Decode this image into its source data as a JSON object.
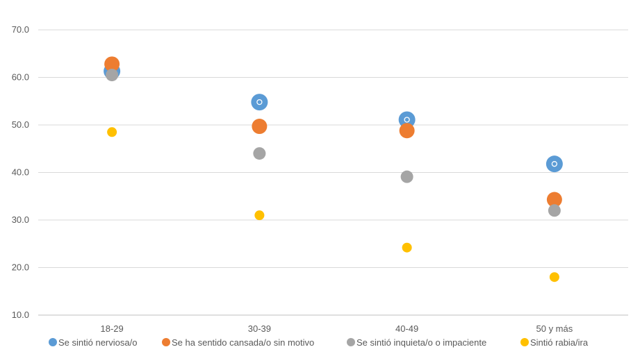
{
  "chart_data": {
    "type": "scatter",
    "categories": [
      "18-29",
      "30-39",
      "40-49",
      "50 y más"
    ],
    "ylim": [
      10,
      70
    ],
    "yticks": [
      10,
      20,
      30,
      40,
      50,
      60,
      70
    ],
    "ytick_labels": [
      "10.0",
      "20.0",
      "30.0",
      "40.0",
      "50.0",
      "60.0",
      "70.0"
    ],
    "grid": true,
    "legend_position": "bottom",
    "series": [
      {
        "name": "Se sintió nerviosa/o",
        "color": "#5B9BD5",
        "values": [
          61.3,
          54.8,
          51.1,
          41.8
        ]
      },
      {
        "name": "Se ha sentido cansada/o sin motivo",
        "color": "#ED7D31",
        "values": [
          62.8,
          49.7,
          48.8,
          34.3
        ]
      },
      {
        "name": "Se sintió inquieta/o o impaciente",
        "color": "#A5A5A5",
        "values": [
          60.5,
          44.0,
          39.1,
          32.0
        ]
      },
      {
        "name": "Sintió rabia/ira",
        "color": "#FFC000",
        "values": [
          48.5,
          31.0,
          24.2,
          18.0
        ]
      }
    ]
  }
}
